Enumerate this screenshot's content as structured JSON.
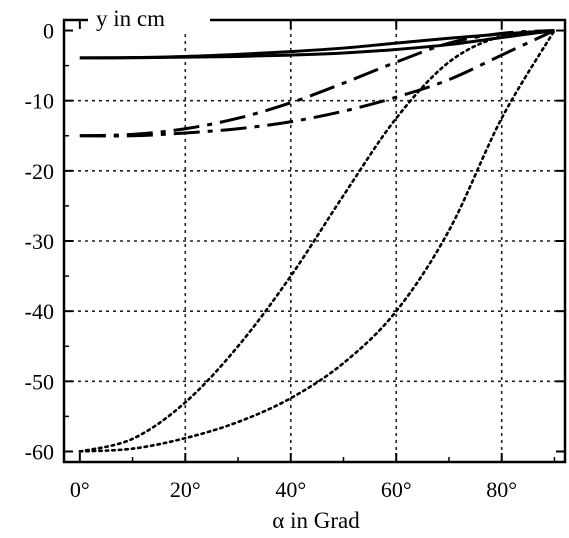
{
  "chart_data": {
    "type": "line",
    "title": "",
    "xlabel": "α in Grad",
    "ylabel": "y in cm",
    "xlim": [
      -3,
      92
    ],
    "ylim": [
      -61.5,
      1.5
    ],
    "grid": true,
    "x_ticks": [
      {
        "value": 0,
        "label": "0°"
      },
      {
        "value": 20,
        "label": "20°"
      },
      {
        "value": 40,
        "label": "40°"
      },
      {
        "value": 60,
        "label": "60°"
      },
      {
        "value": 80,
        "label": "80°"
      }
    ],
    "y_ticks": [
      {
        "value": 0,
        "label": "0"
      },
      {
        "value": -10,
        "label": "-10"
      },
      {
        "value": -20,
        "label": "-20"
      },
      {
        "value": -30,
        "label": "-30"
      },
      {
        "value": -40,
        "label": "-40"
      },
      {
        "value": -50,
        "label": "-50"
      },
      {
        "value": -60,
        "label": "-60"
      }
    ],
    "series": [
      {
        "style": "solid",
        "x": [
          0,
          10,
          20,
          30,
          40,
          50,
          60,
          70,
          80,
          90
        ],
        "y": [
          -3.9,
          -3.85,
          -3.7,
          -3.4,
          -3.0,
          -2.5,
          -1.8,
          -1.1,
          -0.5,
          0
        ]
      },
      {
        "style": "solid",
        "x": [
          0,
          10,
          20,
          30,
          40,
          50,
          60,
          70,
          80,
          90
        ],
        "y": [
          -3.9,
          -3.88,
          -3.8,
          -3.7,
          -3.5,
          -3.2,
          -2.7,
          -2.0,
          -1.0,
          0
        ]
      },
      {
        "style": "dashdot",
        "x": [
          0,
          10,
          20,
          30,
          40,
          50,
          60,
          70,
          80,
          90
        ],
        "y": [
          -15.0,
          -14.8,
          -14.0,
          -12.5,
          -10.3,
          -7.5,
          -4.5,
          -1.8,
          -0.4,
          0
        ]
      },
      {
        "style": "dashdot",
        "x": [
          0,
          10,
          20,
          30,
          40,
          50,
          60,
          70,
          80,
          90
        ],
        "y": [
          -15.0,
          -15.0,
          -14.6,
          -14.0,
          -13.0,
          -11.5,
          -9.5,
          -7.0,
          -3.5,
          0
        ]
      },
      {
        "style": "dotted",
        "x": [
          0,
          10,
          20,
          30,
          40,
          50,
          60,
          70,
          80,
          90
        ],
        "y": [
          -60.0,
          -58.2,
          -53.0,
          -45.0,
          -35.0,
          -23.5,
          -12.5,
          -4.5,
          -0.8,
          0
        ]
      },
      {
        "style": "dotted",
        "x": [
          0,
          10,
          20,
          30,
          40,
          50,
          60,
          70,
          80,
          90
        ],
        "y": [
          -60.0,
          -59.6,
          -58.1,
          -55.8,
          -52.4,
          -47.4,
          -40.0,
          -28.5,
          -12.5,
          0
        ]
      }
    ]
  }
}
